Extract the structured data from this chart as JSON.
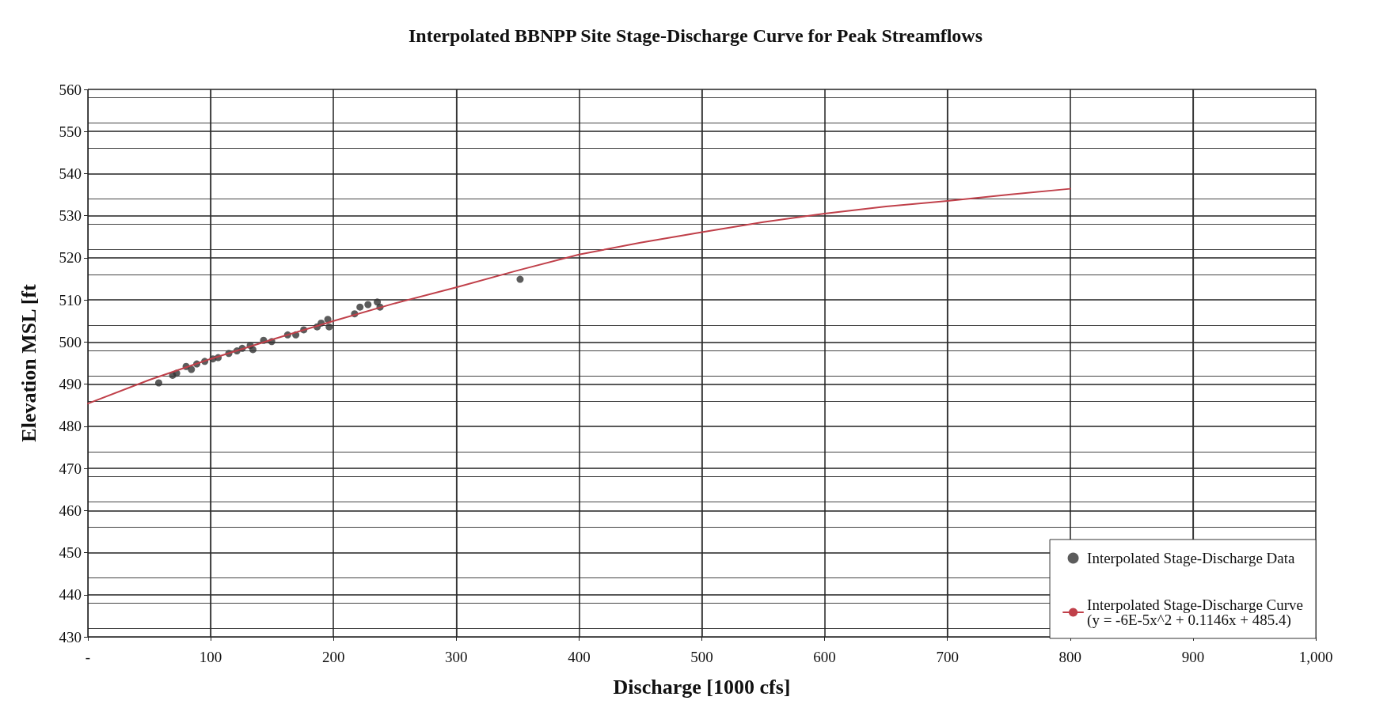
{
  "chart_data": {
    "type": "scatter",
    "title": "Interpolated BBNPP Site Stage-Discharge Curve for Peak Streamflows",
    "xlabel": "Discharge [1000 cfs]",
    "ylabel": "Elevation MSL [ft",
    "xlim": [
      0,
      1000
    ],
    "xticks": [
      {
        "value": 0,
        "label": "-"
      },
      100,
      200,
      300,
      400,
      500,
      600,
      700,
      800,
      900,
      {
        "value": 1000,
        "label": "1,000"
      }
    ],
    "ylim": [
      430,
      560
    ],
    "yticks": [
      430,
      440,
      450,
      460,
      470,
      480,
      490,
      500,
      510,
      520,
      530,
      540,
      550,
      560
    ],
    "grid": true,
    "legend": "bottom right",
    "series": [
      {
        "name": "Interpolated Stage-Discharge Data",
        "marker": "circle",
        "color": "#333333",
        "x": [
          57.7,
          69,
          72.3,
          80,
          84.3,
          88.7,
          95.2,
          101.8,
          106.1,
          114.8,
          121.4,
          125.7,
          132.2,
          134.4,
          143.1,
          149.7,
          162.7,
          169.3,
          175.8,
          186.7,
          190,
          195.4,
          196.5,
          217.2,
          221.6,
          228.1,
          235.7,
          237.9,
          352
        ],
        "values": [
          490.3,
          492.1,
          492.6,
          494.2,
          493.5,
          494.8,
          495.4,
          496,
          496.3,
          497.3,
          497.9,
          498.5,
          499.2,
          498.2,
          500.4,
          500.1,
          501.7,
          501.7,
          502.9,
          503.6,
          504.5,
          505.4,
          503.6,
          506.7,
          508.3,
          508.9,
          509.5,
          508.3,
          514.9
        ]
      },
      {
        "name": "Interpolated Stage-Discharge Curve\n(y = -6E-5x^2 + 0.1146x + 485.4)",
        "type": "line",
        "marker": "none",
        "line_style": "solid",
        "color": "#c0404a",
        "x": [
          0,
          50,
          100,
          150,
          200,
          250,
          300,
          350,
          400,
          450,
          500,
          550,
          600,
          650,
          700,
          750,
          800
        ],
        "values": [
          485.4,
          491,
          496,
          500.6,
          505,
          509.2,
          513,
          517,
          520.8,
          523.6,
          526.1,
          528.5,
          530.5,
          532.2,
          533.5,
          535,
          536.4
        ]
      }
    ]
  }
}
